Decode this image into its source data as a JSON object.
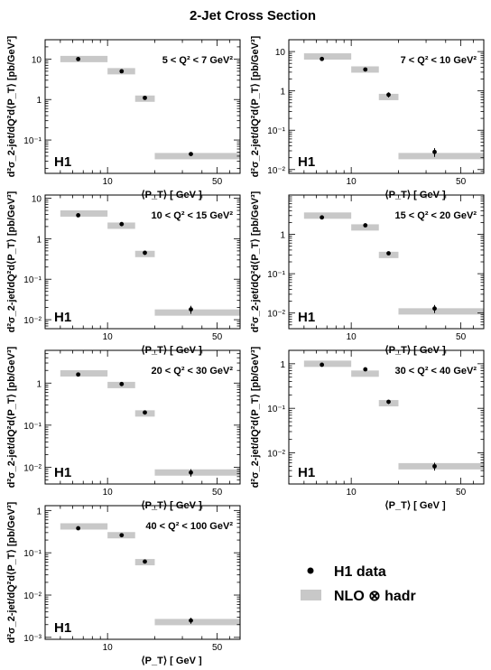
{
  "title": "2-Jet Cross Section",
  "x_label": "⟨P_T⟩ [ GeV ]",
  "y_label": "d²σ_2-jet/dQ²d⟨P_T⟩ [pb/GeV³]",
  "experiment_label": "H1",
  "legend": {
    "data": "H1 data",
    "theory": "NLO ⊗ hadr"
  },
  "colors": {
    "data": "#000000",
    "theory_band": "#c8c8c8"
  },
  "chart_data": [
    {
      "type": "scatter",
      "label": "5 < Q² < 7 GeV²",
      "log_x": true,
      "log_y": true,
      "xlim": [
        4,
        70
      ],
      "ylim": [
        0.015,
        30
      ],
      "xticks": [
        10,
        50
      ],
      "yticks": [
        0.1,
        1,
        10
      ],
      "ytick_labels": [
        "10⁻¹",
        "1",
        "10"
      ],
      "bins": [
        [
          5,
          10
        ],
        [
          10,
          15
        ],
        [
          15,
          20
        ],
        [
          20,
          80
        ]
      ],
      "data_x": [
        6.5,
        12.3,
        17.3,
        34
      ],
      "data_y": [
        10,
        5,
        1.1,
        0.045
      ],
      "data_err": [
        0.5,
        0.3,
        0.08,
        0.005
      ],
      "nlo_y": [
        10,
        5,
        1.05,
        0.04
      ]
    },
    {
      "type": "scatter",
      "label": "7 < Q² < 10 GeV²",
      "log_x": true,
      "log_y": true,
      "xlim": [
        4,
        70
      ],
      "ylim": [
        0.008,
        20
      ],
      "xticks": [
        10,
        50
      ],
      "yticks": [
        0.01,
        0.1,
        1,
        10
      ],
      "ytick_labels": [
        "10⁻²",
        "10⁻¹",
        "1",
        "10"
      ],
      "bins": [
        [
          5,
          10
        ],
        [
          10,
          15
        ],
        [
          15,
          20
        ],
        [
          20,
          80
        ]
      ],
      "data_x": [
        6.5,
        12.3,
        17.3,
        34
      ],
      "data_y": [
        6.5,
        3.5,
        0.8,
        0.028
      ],
      "data_err": [
        0.4,
        0.25,
        0.12,
        0.007
      ],
      "nlo_y": [
        7.5,
        3.5,
        0.7,
        0.022
      ]
    },
    {
      "type": "scatter",
      "label": "10 < Q² < 15 GeV²",
      "log_x": true,
      "log_y": true,
      "xlim": [
        4,
        70
      ],
      "ylim": [
        0.006,
        12
      ],
      "xticks": [
        10,
        50
      ],
      "yticks": [
        0.01,
        0.1,
        1,
        10
      ],
      "ytick_labels": [
        "10⁻²",
        "10⁻¹",
        "1",
        "10"
      ],
      "bins": [
        [
          5,
          10
        ],
        [
          10,
          15
        ],
        [
          15,
          20
        ],
        [
          20,
          80
        ]
      ],
      "data_x": [
        6.5,
        12.3,
        17.3,
        34
      ],
      "data_y": [
        3.8,
        2.3,
        0.45,
        0.018
      ],
      "data_err": [
        0.25,
        0.15,
        0.05,
        0.004
      ],
      "nlo_y": [
        4.2,
        2.1,
        0.42,
        0.015
      ]
    },
    {
      "type": "scatter",
      "label": "15 < Q² < 20 GeV²",
      "log_x": true,
      "log_y": true,
      "xlim": [
        4,
        70
      ],
      "ylim": [
        0.004,
        10
      ],
      "xticks": [
        10,
        50
      ],
      "yticks": [
        0.01,
        0.1,
        1
      ],
      "ytick_labels": [
        "10⁻²",
        "10⁻¹",
        "1"
      ],
      "bins": [
        [
          5,
          10
        ],
        [
          10,
          15
        ],
        [
          15,
          20
        ],
        [
          20,
          80
        ]
      ],
      "data_x": [
        6.5,
        12.3,
        17.3,
        34
      ],
      "data_y": [
        2.7,
        1.7,
        0.33,
        0.013
      ],
      "data_err": [
        0.2,
        0.12,
        0.03,
        0.003
      ],
      "nlo_y": [
        3.0,
        1.5,
        0.3,
        0.011
      ]
    },
    {
      "type": "scatter",
      "label": "20 < Q² < 30 GeV²",
      "log_x": true,
      "log_y": true,
      "xlim": [
        4,
        70
      ],
      "ylim": [
        0.004,
        6
      ],
      "xticks": [
        10,
        50
      ],
      "yticks": [
        0.01,
        0.1,
        1
      ],
      "ytick_labels": [
        "10⁻²",
        "10⁻¹",
        "1"
      ],
      "bins": [
        [
          5,
          10
        ],
        [
          10,
          15
        ],
        [
          15,
          20
        ],
        [
          20,
          80
        ]
      ],
      "data_x": [
        6.5,
        12.3,
        17.3,
        34
      ],
      "data_y": [
        1.6,
        0.95,
        0.2,
        0.0075
      ],
      "data_err": [
        0.1,
        0.06,
        0.02,
        0.0015
      ],
      "nlo_y": [
        1.7,
        0.9,
        0.19,
        0.0075
      ]
    },
    {
      "type": "scatter",
      "label": "30 < Q² < 40 GeV²",
      "log_x": true,
      "log_y": true,
      "xlim": [
        4,
        70
      ],
      "ylim": [
        0.002,
        2
      ],
      "xticks": [
        10,
        50
      ],
      "yticks": [
        0.01,
        0.1,
        1
      ],
      "ytick_labels": [
        "10⁻²",
        "10⁻¹",
        "1"
      ],
      "bins": [
        [
          5,
          10
        ],
        [
          10,
          15
        ],
        [
          15,
          20
        ],
        [
          20,
          80
        ]
      ],
      "data_x": [
        6.5,
        12.3,
        17.3,
        34
      ],
      "data_y": [
        0.95,
        0.75,
        0.14,
        0.005
      ],
      "data_err": [
        0.07,
        0.06,
        0.015,
        0.001
      ],
      "nlo_y": [
        1.0,
        0.6,
        0.13,
        0.005
      ]
    },
    {
      "type": "scatter",
      "label": "40 < Q² < 100 GeV²",
      "log_x": true,
      "log_y": true,
      "xlim": [
        4,
        70
      ],
      "ylim": [
        0.0009,
        1.3
      ],
      "xticks": [
        10,
        50
      ],
      "yticks": [
        0.001,
        0.01,
        0.1,
        1
      ],
      "ytick_labels": [
        "10⁻³",
        "10⁻²",
        "10⁻¹",
        "1"
      ],
      "bins": [
        [
          5,
          10
        ],
        [
          10,
          15
        ],
        [
          15,
          20
        ],
        [
          20,
          80
        ]
      ],
      "data_x": [
        6.5,
        12.3,
        17.3,
        34
      ],
      "data_y": [
        0.38,
        0.26,
        0.062,
        0.0025
      ],
      "data_err": [
        0.03,
        0.02,
        0.006,
        0.0004
      ],
      "nlo_y": [
        0.42,
        0.26,
        0.06,
        0.0023
      ]
    }
  ]
}
